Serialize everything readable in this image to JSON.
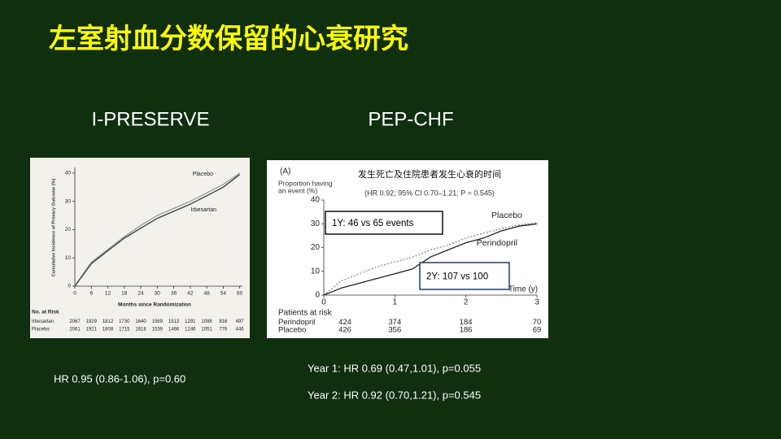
{
  "title": "左室射血分数保留的心衰研究",
  "chart_data": [
    {
      "type": "line",
      "heading": "I-PRESERVE",
      "x_label": "Months since Randomization",
      "y_label": "Cumulative Incidence of Primary Outcome (%)",
      "x": [
        0,
        6,
        12,
        18,
        24,
        30,
        36,
        42,
        48,
        54,
        60
      ],
      "xlim": [
        0,
        61
      ],
      "ylim": [
        0,
        42
      ],
      "xticks": [
        0,
        6,
        12,
        18,
        24,
        30,
        36,
        42,
        48,
        54,
        60
      ],
      "yticks": [
        0,
        10,
        20,
        30,
        40
      ],
      "series": [
        {
          "name": "Placebo",
          "color": "#9a9a9a",
          "dashed": false,
          "values": [
            0,
            8.5,
            13,
            17.5,
            21.5,
            25,
            27.5,
            30,
            33,
            36,
            40
          ]
        },
        {
          "name": "Irbesartan",
          "color": "#3a3a3a",
          "dashed": false,
          "values": [
            0,
            8,
            12.5,
            17,
            20.5,
            24,
            26.5,
            29,
            32,
            35,
            39.5
          ]
        }
      ],
      "risk_table": {
        "title": "No. at Risk",
        "rows": [
          {
            "name": "Irbesartan",
            "values": [
              2067,
              1929,
              1812,
              1730,
              1640,
              1569,
              1513,
              1291,
              1088,
              816,
              497
            ]
          },
          {
            "name": "Placebo",
            "values": [
              2061,
              1921,
              1808,
              1715,
              1618,
              1539,
              1466,
              1246,
              1051,
              776,
              446
            ]
          }
        ]
      },
      "notes": [
        "HR 0.95 (0.86-1.06), p=0.60"
      ]
    },
    {
      "type": "line",
      "heading": "PEP-CHF",
      "panel": "(A)",
      "title": "发生死亡及住院患者发生心衰的时间",
      "subtitle": "(HR 0.92; 95% CI 0.70–1.21; P = 0.545)",
      "x_label": "Time (y)",
      "y_label": [
        "Proportion having",
        "an event (%)"
      ],
      "x": [
        0,
        0.25,
        0.5,
        0.75,
        1,
        1.25,
        1.5,
        1.75,
        2,
        2.25,
        2.5,
        2.75,
        3
      ],
      "xlim": [
        0,
        3
      ],
      "ylim": [
        0,
        40
      ],
      "xticks": [
        0,
        1,
        2,
        3
      ],
      "yticks": [
        0,
        10,
        20,
        30,
        40
      ],
      "series": [
        {
          "name": "Placebo",
          "color": "#8a8a8a",
          "dashed": true,
          "values": [
            0,
            6,
            9,
            12,
            14,
            16,
            19,
            21,
            24,
            26,
            28,
            29.5,
            30.5
          ]
        },
        {
          "name": "Perindopril",
          "color": "#222222",
          "dashed": false,
          "values": [
            0,
            3,
            5,
            7,
            9,
            11,
            16,
            19,
            22,
            24,
            27,
            29,
            30
          ]
        }
      ],
      "annotations": [
        "1Y: 46 vs 65 events",
        "2Y: 107 vs 100"
      ],
      "risk_table": {
        "title": "Patients at risk",
        "rows": [
          {
            "name": "Perindopril",
            "values": [
              424,
              374,
              184,
              70
            ]
          },
          {
            "name": "Placebo",
            "values": [
              426,
              356,
              186,
              69
            ]
          }
        ]
      },
      "notes": [
        "Year 1: HR 0.69 (0.47,1.01), p=0.055",
        "Year 2: HR 0.92 (0.70,1.21), p=0.545"
      ]
    }
  ]
}
